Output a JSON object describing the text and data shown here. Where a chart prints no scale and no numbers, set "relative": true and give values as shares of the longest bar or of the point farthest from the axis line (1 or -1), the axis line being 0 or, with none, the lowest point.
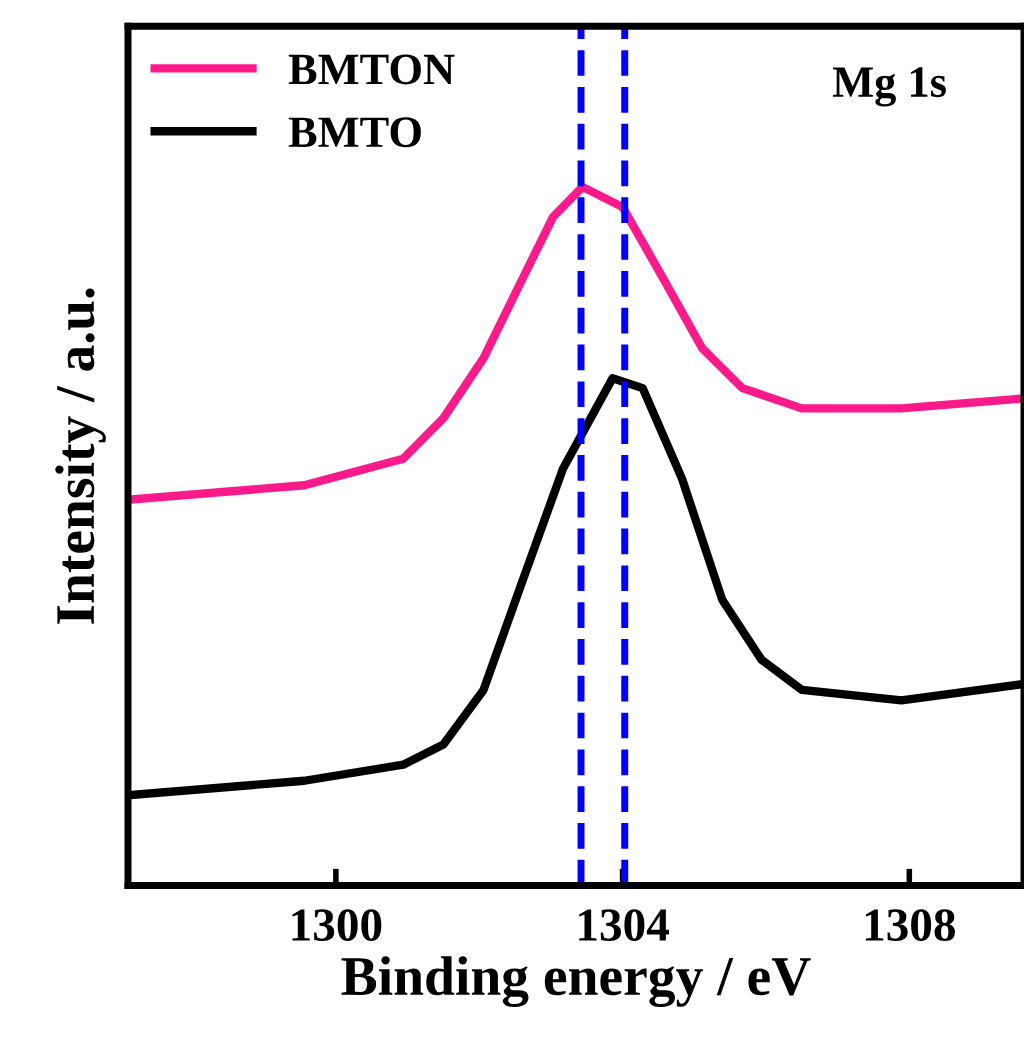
{
  "chart_data": {
    "type": "line",
    "relative": true,
    "xlabel": "Binding energy / eV",
    "ylabel": "Intensity / a.u.",
    "annotations": [
      "Mg 1s"
    ],
    "xlim": [
      1297.1,
      1309.6
    ],
    "xticks": [
      1300,
      1304,
      1308
    ],
    "legend": "top left",
    "grid": false,
    "line_style": "solid",
    "marker": "none",
    "series": [
      {
        "name": "BMTON",
        "color": "#ff1a8c",
        "x": [
          1297.19,
          1299.56,
          1300.94,
          1301.5,
          1302.06,
          1302.61,
          1303.03,
          1303.44,
          1304.0,
          1304.56,
          1305.11,
          1305.67,
          1306.5,
          1307.89,
          1309.56
        ],
        "values": [
          0.553,
          0.573,
          0.611,
          0.669,
          0.755,
          0.87,
          0.957,
          1.0,
          0.971,
          0.87,
          0.769,
          0.712,
          0.683,
          0.683,
          0.697
        ]
      },
      {
        "name": "BMTO",
        "color": "#000000",
        "x": [
          1297.19,
          1299.56,
          1300.94,
          1301.5,
          1302.06,
          1302.61,
          1303.17,
          1303.86,
          1304.28,
          1304.83,
          1305.39,
          1305.94,
          1306.5,
          1307.89,
          1309.56
        ],
        "values": [
          0.13,
          0.15,
          0.173,
          0.202,
          0.28,
          0.438,
          0.597,
          0.726,
          0.712,
          0.582,
          0.409,
          0.323,
          0.28,
          0.265,
          0.288
        ]
      }
    ],
    "ref_lines": [
      {
        "axis": "x",
        "value": 1303.42,
        "color": "#0000ff",
        "line_style": "dashed"
      },
      {
        "axis": "x",
        "value": 1304.03,
        "color": "#0000ff",
        "line_style": "dashed"
      }
    ]
  }
}
